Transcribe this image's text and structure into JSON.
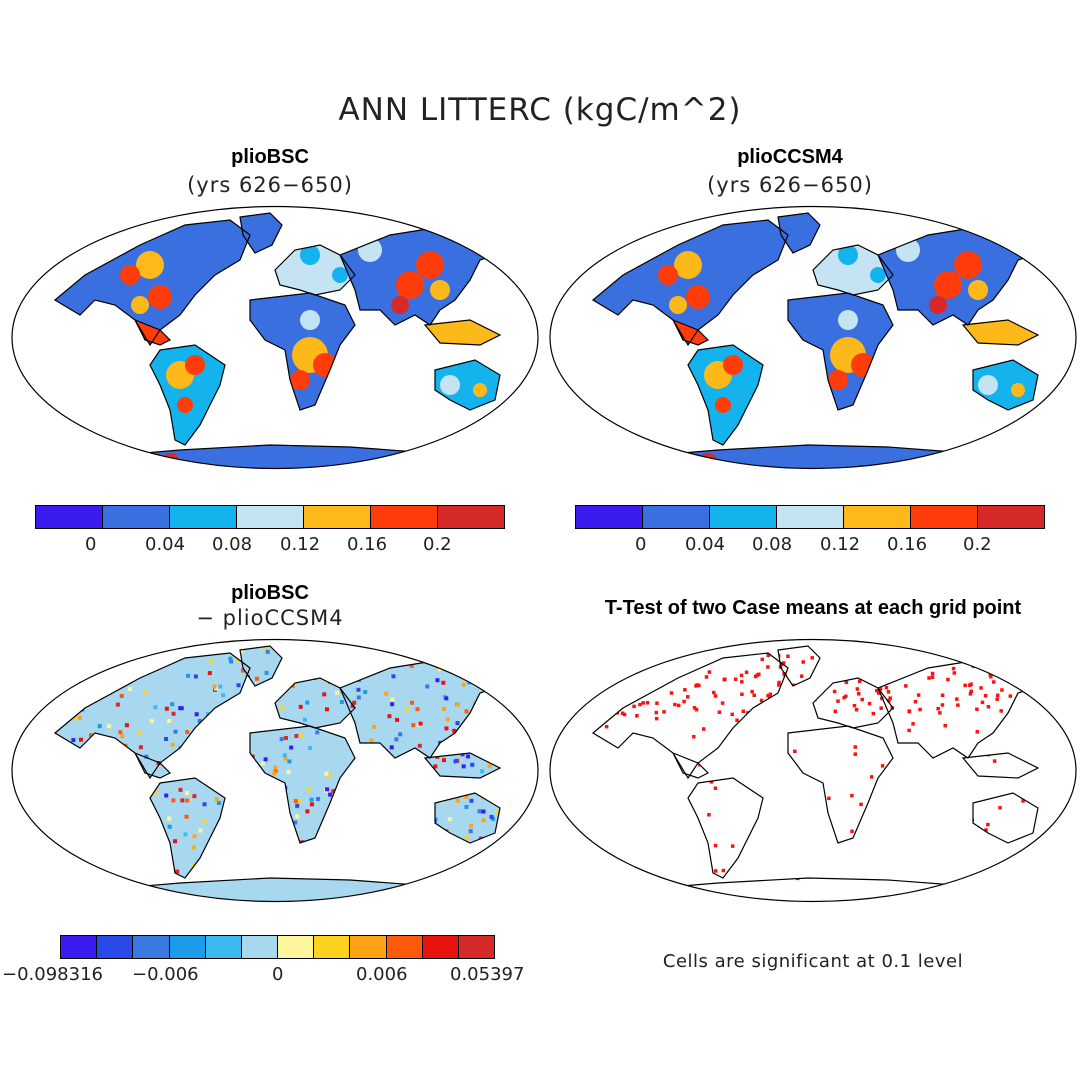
{
  "main_title": "ANN LITTERC (kgC/m^2)",
  "panels": [
    {
      "title": "plioBSC",
      "subtitle": "(yrs 626−650)"
    },
    {
      "title": "plioCCSM4",
      "subtitle": "(yrs 626−650)"
    },
    {
      "title": "plioBSC",
      "subtitle": "− plioCCSM4"
    },
    {
      "title": "T-Test of two Case means at each grid point",
      "subtitle": ""
    }
  ],
  "colorbar_main": {
    "colors": [
      "#3a1cf0",
      "#3a6fe0",
      "#14b3ee",
      "#c4e4f4",
      "#fdb91a",
      "#ff3c0a",
      "#d62a2a"
    ],
    "ticks": [
      "0",
      "0.04",
      "0.08",
      "0.12",
      "0.16",
      "0.2"
    ]
  },
  "colorbar_diff": {
    "colors": [
      "#3a1cf0",
      "#2a4ae8",
      "#3a7ae0",
      "#1d9ae8",
      "#3cbaf0",
      "#a8d8f0",
      "#fff59a",
      "#ffd21e",
      "#ffa314",
      "#ff5a0a",
      "#e8130e",
      "#d62a2a"
    ],
    "ticks": [
      "−0.098316",
      "−0.006",
      "0",
      "0.006",
      "0.05397"
    ]
  },
  "note": "Cells are significant at 0.1 level"
}
